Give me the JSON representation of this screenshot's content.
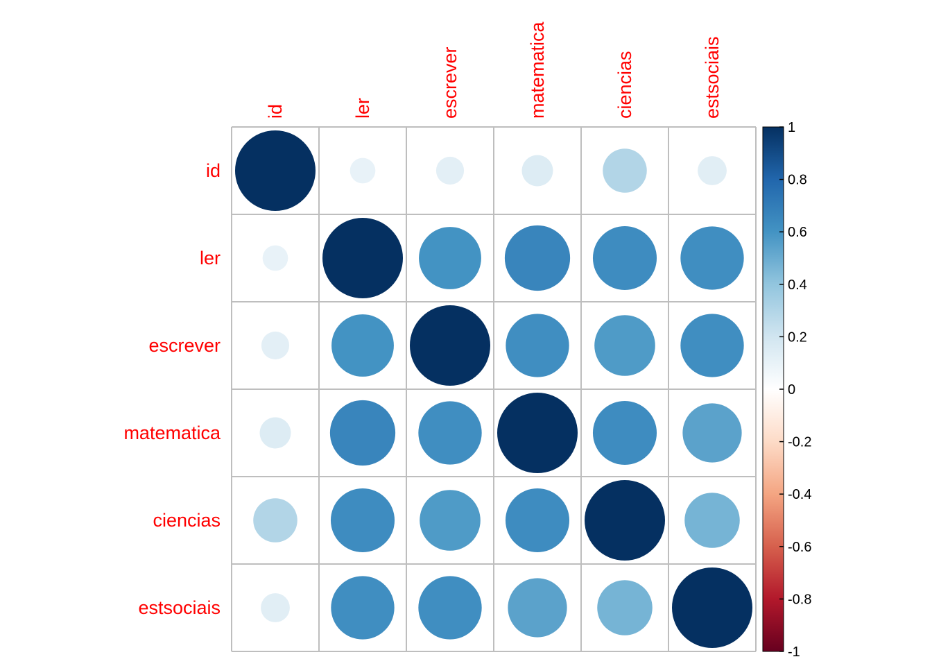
{
  "chart_data": {
    "type": "heatmap",
    "subtype": "correlation-circle",
    "title": "",
    "variables": [
      "id",
      "ler",
      "escrever",
      "matematica",
      "ciencias",
      "estsociais"
    ],
    "matrix": [
      [
        1.0,
        0.1,
        0.12,
        0.15,
        0.3,
        0.13
      ],
      [
        0.1,
        1.0,
        0.6,
        0.66,
        0.63,
        0.62
      ],
      [
        0.12,
        0.6,
        1.0,
        0.62,
        0.57,
        0.62
      ],
      [
        0.15,
        0.66,
        0.62,
        1.0,
        0.63,
        0.54
      ],
      [
        0.3,
        0.63,
        0.57,
        0.63,
        1.0,
        0.47
      ],
      [
        0.13,
        0.62,
        0.62,
        0.54,
        0.47,
        1.0
      ]
    ],
    "color_range": [
      -1,
      1
    ],
    "colorbar_ticks": [
      {
        "value": 1,
        "label": "1"
      },
      {
        "value": 0.8,
        "label": "0.8"
      },
      {
        "value": 0.6,
        "label": "0.6"
      },
      {
        "value": 0.4,
        "label": "0.4"
      },
      {
        "value": 0.2,
        "label": "0.2"
      },
      {
        "value": 0,
        "label": "0"
      },
      {
        "value": -0.2,
        "label": "-0.2"
      },
      {
        "value": -0.4,
        "label": "-0.4"
      },
      {
        "value": -0.6,
        "label": "-0.6"
      },
      {
        "value": -0.8,
        "label": "-0.8"
      },
      {
        "value": -1,
        "label": "-1"
      }
    ],
    "palette": [
      "#67001F",
      "#B2182B",
      "#D6604D",
      "#F4A582",
      "#FDDBC7",
      "#FFFFFF",
      "#D1E5F0",
      "#92C5DE",
      "#4393C3",
      "#2166AC",
      "#053061"
    ],
    "label_color": "#ff0000",
    "grid_color": "#bebebe",
    "legend": "right"
  }
}
